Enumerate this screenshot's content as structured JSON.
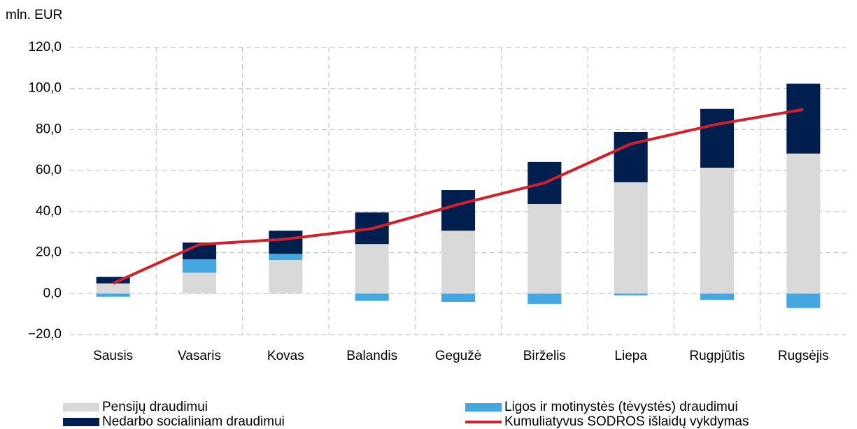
{
  "chart_data": {
    "type": "bar",
    "stacked": true,
    "y_label": "mln. EUR",
    "categories": [
      "Sausis",
      "Vasaris",
      "Kovas",
      "Balandis",
      "Gegužė",
      "Birželis",
      "Liepa",
      "Rugpjūtis",
      "Rugsėjis"
    ],
    "series": [
      {
        "name": "Pensijų draudimui",
        "color": "#d9d9d9",
        "values": [
          5,
          10.2,
          16.4,
          24.2,
          30.7,
          43.7,
          54.3,
          61.4,
          68.3
        ]
      },
      {
        "name": "Ligos ir motinystės (tėvystės) draudimui",
        "color": "#45a7df",
        "values": [
          -1.5,
          6.5,
          3,
          -3.5,
          -4,
          -5,
          -0.8,
          -3,
          -7
        ]
      },
      {
        "name": "Nedarbo socialiniam draudimui",
        "color": "#001f4f",
        "values": [
          3.2,
          8.2,
          11.3,
          15.4,
          19.8,
          20.5,
          24.5,
          28.7,
          34.1
        ]
      },
      {
        "name": "Kumuliatyvus SODROS išlaidų vykdymas",
        "color": "#d1202b",
        "type": "line",
        "values": [
          5,
          24,
          26.6,
          31.7,
          43.5,
          54,
          73,
          82.6,
          89.8
        ]
      }
    ],
    "ylim": [
      -20,
      120
    ],
    "yticks": [
      {
        "value": -20,
        "label": "−20,0"
      },
      {
        "value": 0,
        "label": "0,0"
      },
      {
        "value": 20,
        "label": "20,0"
      },
      {
        "value": 40,
        "label": "40,0"
      },
      {
        "value": 60,
        "label": "60,0"
      },
      {
        "value": 80,
        "label": "80,0"
      },
      {
        "value": 100,
        "label": "100,0"
      },
      {
        "value": 120,
        "label": "120,0"
      }
    ],
    "grid": true,
    "legend": "bottom"
  }
}
